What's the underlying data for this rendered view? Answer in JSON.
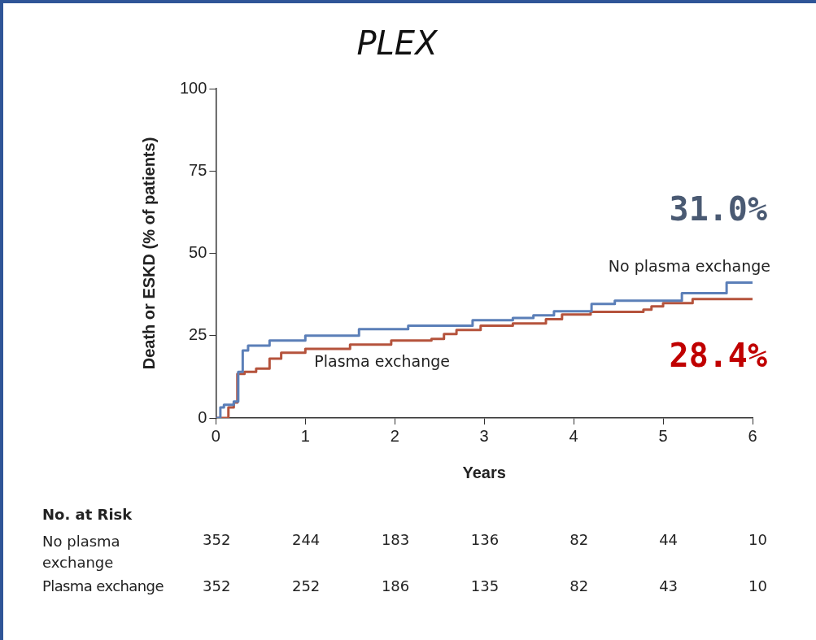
{
  "chart_data": {
    "type": "step",
    "title": "PLEX",
    "xlabel": "Years",
    "ylabel": "Death or ESKD (% of patients)",
    "xlim": [
      0,
      6
    ],
    "xticks": [
      0,
      1,
      2,
      3,
      4,
      5,
      6
    ],
    "ylim": [
      0,
      100
    ],
    "yticks": [
      0,
      25,
      50,
      75,
      100
    ],
    "grid": false,
    "legend": false,
    "series": [
      {
        "name": "No plasma exchange",
        "color": "#5b7fb8",
        "x": [
          0,
          0.05,
          0.09,
          0.2,
          0.25,
          0.3,
          0.36,
          0.6,
          1.0,
          1.6,
          2.15,
          2.87,
          3.32,
          3.55,
          3.78,
          4.2,
          4.46,
          5.21,
          5.71,
          6
        ],
        "values": [
          0,
          3.2,
          4,
          5,
          14,
          20.5,
          22,
          23.5,
          25,
          27,
          28,
          29.7,
          30.4,
          31.2,
          32.4,
          34.6,
          35.6,
          37.9,
          41.1,
          41.1
        ]
      },
      {
        "name": "Plasma exchange",
        "color": "#b5533c",
        "x": [
          0,
          0.14,
          0.2,
          0.24,
          0.32,
          0.45,
          0.6,
          0.73,
          1.0,
          1.32,
          1.5,
          1.96,
          2.41,
          2.55,
          2.69,
          2.96,
          3.32,
          3.69,
          3.87,
          4.19,
          4.78,
          4.87,
          5.0,
          5.33,
          6
        ],
        "values": [
          0,
          3.2,
          4.7,
          13.4,
          14,
          15,
          18,
          19.8,
          21,
          21,
          22.3,
          23.5,
          24,
          25.5,
          26.7,
          28,
          28.7,
          30,
          31.4,
          32.2,
          32.9,
          33.9,
          34.9,
          36.1,
          36.1
        ]
      }
    ],
    "annotations": [
      "31.0%",
      "28.4%",
      "No. at Risk",
      "No plasma exchange",
      "352",
      "244",
      "183",
      "136",
      "82",
      "44",
      "10",
      "Plasma exchange",
      "352",
      "252",
      "186",
      "135",
      "82",
      "43",
      "10"
    ]
  }
}
